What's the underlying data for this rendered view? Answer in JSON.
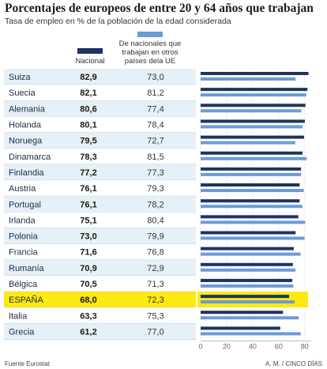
{
  "title": "Porcentajes de europeos de entre 20 y 64 años que trabajan",
  "subtitle": "Tasa de empleo en % de la población de la edad considerada",
  "legend": {
    "nacional": "Nacional",
    "ue": "De nacionales que trabajan en otros países dela UE"
  },
  "footer": {
    "source": "Fuente Eurostat",
    "credit": "A. M. / CINCO DÍAS"
  },
  "colors": {
    "nacional": "#1c3461",
    "ue": "#6b9bd8",
    "row_alt": "#e6f0f7",
    "highlight": "#fde910",
    "divider": "#aac6dc"
  },
  "chart_data": {
    "type": "bar",
    "orientation": "horizontal",
    "categories": [
      "Suiza",
      "Suecia",
      "Alemania",
      "Holanda",
      "Noruega",
      "Dinamarca",
      "Finlandia",
      "Austria",
      "Portugal",
      "Irlanda",
      "Polonia",
      "Francia",
      "Rumanía",
      "Bélgica",
      "ESPAÑA",
      "Italia",
      "Grecia"
    ],
    "series": [
      {
        "name": "Nacional",
        "values": [
          82.9,
          82.1,
          80.6,
          80.1,
          79.5,
          78.3,
          77.2,
          76.1,
          76.1,
          75.1,
          73.0,
          71.6,
          70.9,
          70.5,
          68.0,
          63.3,
          61.2
        ]
      },
      {
        "name": "De nacionales que trabajan en otros países dela UE",
        "values": [
          73.0,
          81.2,
          77.4,
          78.4,
          72.7,
          81.5,
          77.3,
          79.3,
          78.2,
          80.4,
          79.9,
          76.8,
          72.9,
          71.3,
          72.3,
          75.3,
          77.0
        ]
      }
    ],
    "value_labels": [
      [
        "82,9",
        "73,0"
      ],
      [
        "82,1",
        "81,2"
      ],
      [
        "80,6",
        "77,4"
      ],
      [
        "80,1",
        "78,4"
      ],
      [
        "79,5",
        "72,7"
      ],
      [
        "78,3",
        "81,5"
      ],
      [
        "77,2",
        "77,3"
      ],
      [
        "76,1",
        "79,3"
      ],
      [
        "76,1",
        "78,2"
      ],
      [
        "75,1",
        "80,4"
      ],
      [
        "73,0",
        "79,9"
      ],
      [
        "71,6",
        "76,8"
      ],
      [
        "70,9",
        "72,9"
      ],
      [
        "70,5",
        "71,3"
      ],
      [
        "68,0",
        "72,3"
      ],
      [
        "63,3",
        "75,3"
      ],
      [
        "61,2",
        "77,0"
      ]
    ],
    "highlight": "ESPAÑA",
    "xlim": [
      0,
      85
    ],
    "xticks": [
      0,
      20,
      40,
      60,
      80
    ],
    "grid": true
  }
}
